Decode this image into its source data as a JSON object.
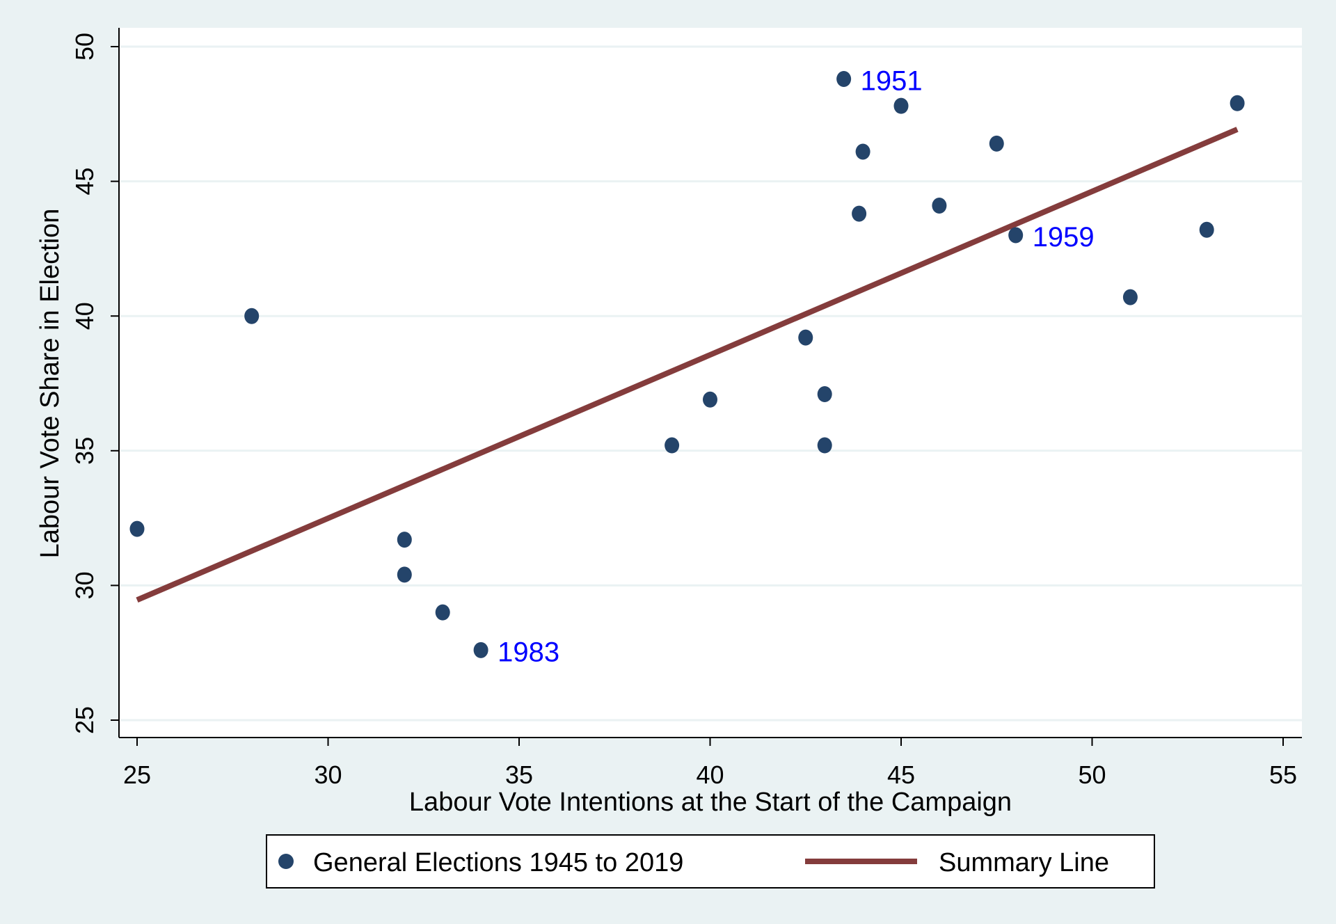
{
  "chart_data": {
    "type": "scatter",
    "title": "",
    "xlabel": "Labour Vote Intentions at the Start of the Campaign",
    "ylabel": "Labour Vote Share in Election",
    "xlim": [
      25,
      55
    ],
    "ylim": [
      25,
      50
    ],
    "xticks": [
      25,
      30,
      35,
      40,
      45,
      50,
      55
    ],
    "yticks": [
      25,
      30,
      35,
      40,
      45,
      50
    ],
    "grid": "horizontal",
    "legend_placement": "bottom",
    "colors": {
      "points": "#24446a",
      "line": "#843c3c",
      "labels": "#0000ff",
      "background": "#eaf2f3",
      "grid": "#eaf2f3"
    },
    "series": [
      {
        "name": "General Elections 1945 to 2019",
        "type": "scatter",
        "points": [
          {
            "x": 25.0,
            "y": 32.1
          },
          {
            "x": 28.0,
            "y": 40.0
          },
          {
            "x": 32.0,
            "y": 31.7
          },
          {
            "x": 32.0,
            "y": 30.4
          },
          {
            "x": 33.0,
            "y": 29.0
          },
          {
            "x": 34.0,
            "y": 27.6,
            "label": "1983"
          },
          {
            "x": 39.0,
            "y": 35.2
          },
          {
            "x": 40.0,
            "y": 36.9
          },
          {
            "x": 42.5,
            "y": 39.2
          },
          {
            "x": 43.0,
            "y": 37.1
          },
          {
            "x": 43.0,
            "y": 35.2
          },
          {
            "x": 43.5,
            "y": 48.8,
            "label": "1951"
          },
          {
            "x": 43.9,
            "y": 43.8
          },
          {
            "x": 44.0,
            "y": 46.1
          },
          {
            "x": 45.0,
            "y": 47.8
          },
          {
            "x": 46.0,
            "y": 44.1
          },
          {
            "x": 47.5,
            "y": 46.4
          },
          {
            "x": 48.0,
            "y": 43.0,
            "label": "1959"
          },
          {
            "x": 51.0,
            "y": 40.7
          },
          {
            "x": 53.0,
            "y": 43.2
          },
          {
            "x": 53.8,
            "y": 47.9
          }
        ]
      },
      {
        "name": "Summary Line",
        "type": "line",
        "points": [
          {
            "x": 25.0,
            "y": 29.46
          },
          {
            "x": 53.8,
            "y": 46.93
          }
        ]
      }
    ]
  }
}
